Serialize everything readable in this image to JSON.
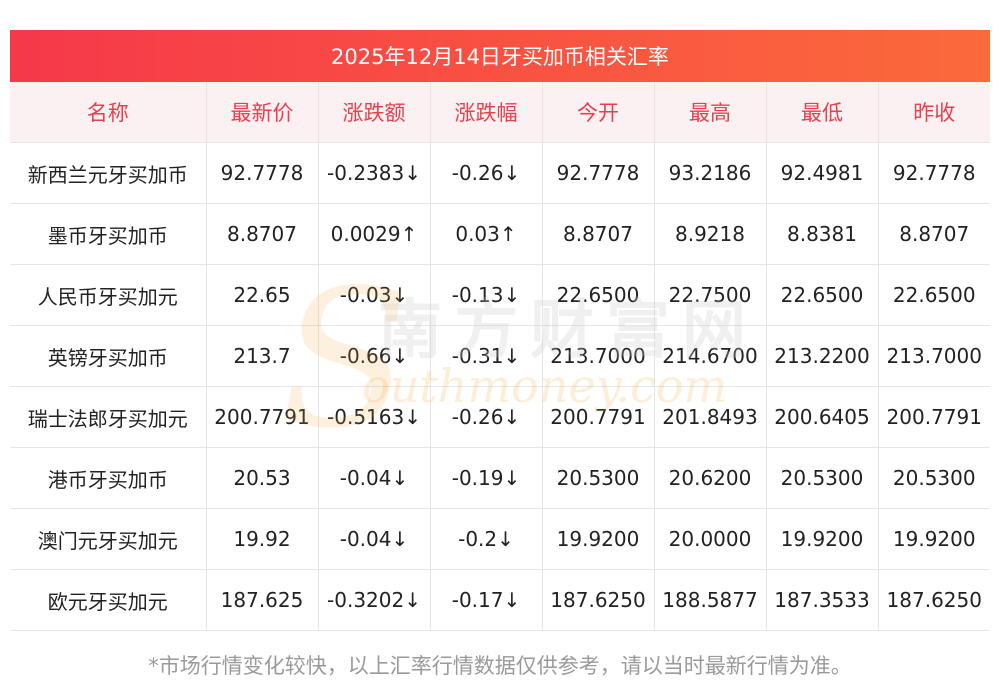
{
  "title": "2025年12月14日牙买加币相关汇率",
  "headers": [
    "名称",
    "最新价",
    "涨跌额",
    "涨跌幅",
    "今开",
    "最高",
    "最低",
    "昨收"
  ],
  "rows": [
    {
      "name": "新西兰元牙买加币",
      "latest": "92.7778",
      "change": "-0.2383↓",
      "pct": "-0.26↓",
      "open": "92.7778",
      "high": "93.2186",
      "low": "92.4981",
      "prev": "92.7778",
      "dir": "down"
    },
    {
      "name": "墨币牙买加币",
      "latest": "8.8707",
      "change": "0.0029↑",
      "pct": "0.03↑",
      "open": "8.8707",
      "high": "8.9218",
      "low": "8.8381",
      "prev": "8.8707",
      "dir": "up"
    },
    {
      "name": "人民币牙买加元",
      "latest": "22.65",
      "change": "-0.03↓",
      "pct": "-0.13↓",
      "open": "22.6500",
      "high": "22.7500",
      "low": "22.6500",
      "prev": "22.6500",
      "dir": "down"
    },
    {
      "name": "英镑牙买加币",
      "latest": "213.7",
      "change": "-0.66↓",
      "pct": "-0.31↓",
      "open": "213.7000",
      "high": "214.6700",
      "low": "213.2200",
      "prev": "213.7000",
      "dir": "down"
    },
    {
      "name": "瑞士法郎牙买加元",
      "latest": "200.7791",
      "change": "-0.5163↓",
      "pct": "-0.26↓",
      "open": "200.7791",
      "high": "201.8493",
      "low": "200.6405",
      "prev": "200.7791",
      "dir": "down"
    },
    {
      "name": "港币牙买加币",
      "latest": "20.53",
      "change": "-0.04↓",
      "pct": "-0.19↓",
      "open": "20.5300",
      "high": "20.6200",
      "low": "20.5300",
      "prev": "20.5300",
      "dir": "down"
    },
    {
      "name": "澳门元牙买加元",
      "latest": "19.92",
      "change": "-0.04↓",
      "pct": "-0.2↓",
      "open": "19.9200",
      "high": "20.0000",
      "low": "19.9200",
      "prev": "19.9200",
      "dir": "down"
    },
    {
      "name": "欧元牙买加元",
      "latest": "187.625",
      "change": "-0.3202↓",
      "pct": "-0.17↓",
      "open": "187.6250",
      "high": "188.5877",
      "low": "187.3533",
      "prev": "187.6250",
      "dir": "down"
    }
  ],
  "watermark": {
    "cn": "南方财富网",
    "en": "outhmoney.com"
  },
  "colors": {
    "up": "#e81b1b",
    "down": "#1f8a1f",
    "header_text": "#e8404e",
    "title_start": "#f6384a",
    "title_end": "#fb6a3b"
  },
  "footer": "*市场行情变化较快，以上汇率行情数据仅供参考，请以当时最新行情为准。"
}
